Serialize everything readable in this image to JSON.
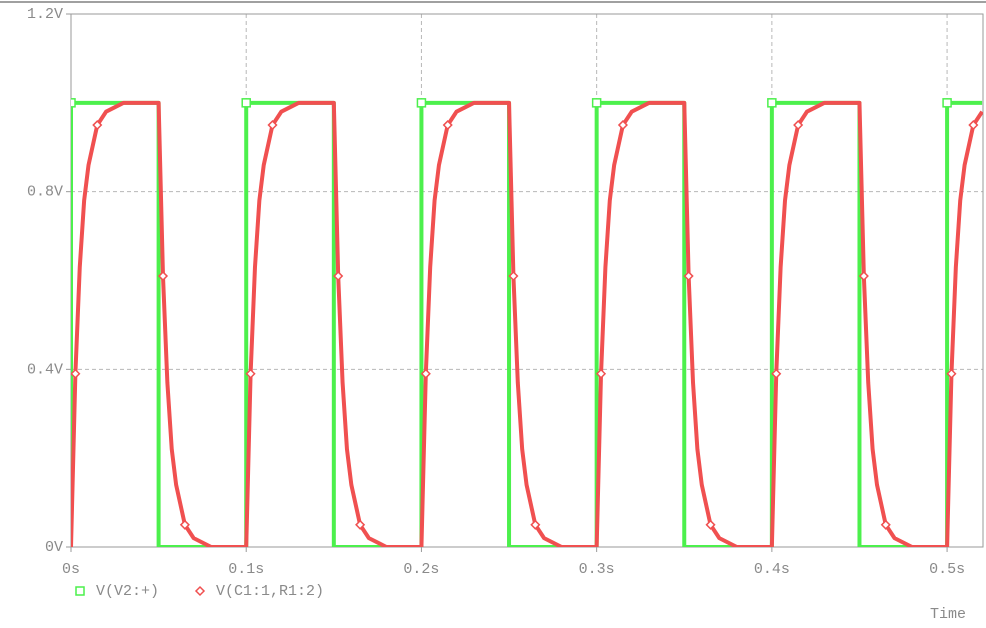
{
  "chart_data": {
    "type": "line",
    "xlabel": "Time",
    "xlim": [
      0,
      0.5205
    ],
    "ylim": [
      0,
      1.2
    ],
    "xticks": [
      {
        "value": 0,
        "label": "0s"
      },
      {
        "value": 0.1,
        "label": "0.1s"
      },
      {
        "value": 0.2,
        "label": "0.2s"
      },
      {
        "value": 0.3,
        "label": "0.3s"
      },
      {
        "value": 0.4,
        "label": "0.4s"
      },
      {
        "value": 0.5,
        "label": "0.5s"
      }
    ],
    "yticks": [
      {
        "value": 0,
        "label": "0V"
      },
      {
        "value": 0.4,
        "label": "0.4V"
      },
      {
        "value": 0.8,
        "label": "0.8V"
      },
      {
        "value": 1.2,
        "label": "1.2V"
      }
    ],
    "grid": true,
    "series": [
      {
        "name": "V(V2:+)",
        "color": "#4cf04c",
        "marker": "square",
        "x": [
          0,
          0,
          0.05,
          0.05,
          0.1,
          0.1,
          0.15,
          0.15,
          0.2,
          0.2,
          0.25,
          0.25,
          0.3,
          0.3,
          0.35,
          0.35,
          0.4,
          0.4,
          0.45,
          0.45,
          0.5,
          0.5,
          0.52
        ],
        "values": [
          0,
          1,
          1,
          0,
          0,
          1,
          1,
          0,
          0,
          1,
          1,
          0,
          0,
          1,
          1,
          0,
          0,
          1,
          1,
          0,
          0,
          1,
          1
        ]
      },
      {
        "name": "V(C1:1,R1:2)",
        "color": "#f05050",
        "marker": "diamond",
        "x": [
          0,
          0.0025,
          0.005,
          0.0075,
          0.01,
          0.015,
          0.02,
          0.03,
          0.05,
          0.0525,
          0.055,
          0.0575,
          0.06,
          0.065,
          0.07,
          0.08,
          0.1,
          0.1025,
          0.105,
          0.1075,
          0.11,
          0.115,
          0.12,
          0.13,
          0.15,
          0.1525,
          0.155,
          0.1575,
          0.16,
          0.165,
          0.17,
          0.18,
          0.2,
          0.2025,
          0.205,
          0.2075,
          0.21,
          0.215,
          0.22,
          0.23,
          0.25,
          0.2525,
          0.255,
          0.2575,
          0.26,
          0.265,
          0.27,
          0.28,
          0.3,
          0.3025,
          0.305,
          0.3075,
          0.31,
          0.315,
          0.32,
          0.33,
          0.35,
          0.3525,
          0.355,
          0.3575,
          0.36,
          0.365,
          0.37,
          0.38,
          0.4,
          0.4025,
          0.405,
          0.4075,
          0.41,
          0.415,
          0.42,
          0.43,
          0.45,
          0.4525,
          0.455,
          0.4575,
          0.46,
          0.465,
          0.47,
          0.48,
          0.5,
          0.5025,
          0.505,
          0.5075,
          0.51,
          0.515,
          0.52
        ],
        "values": [
          0,
          0.39,
          0.63,
          0.78,
          0.86,
          0.95,
          0.98,
          1,
          1,
          0.61,
          0.37,
          0.22,
          0.14,
          0.05,
          0.02,
          0,
          0,
          0.39,
          0.63,
          0.78,
          0.86,
          0.95,
          0.98,
          1,
          1,
          0.61,
          0.37,
          0.22,
          0.14,
          0.05,
          0.02,
          0,
          0,
          0.39,
          0.63,
          0.78,
          0.86,
          0.95,
          0.98,
          1,
          1,
          0.61,
          0.37,
          0.22,
          0.14,
          0.05,
          0.02,
          0,
          0,
          0.39,
          0.63,
          0.78,
          0.86,
          0.95,
          0.98,
          1,
          1,
          0.61,
          0.37,
          0.22,
          0.14,
          0.05,
          0.02,
          0,
          0,
          0.39,
          0.63,
          0.78,
          0.86,
          0.95,
          0.98,
          1,
          1,
          0.61,
          0.37,
          0.22,
          0.14,
          0.05,
          0.02,
          0,
          0,
          0.39,
          0.63,
          0.78,
          0.86,
          0.95,
          0.98
        ]
      }
    ]
  }
}
